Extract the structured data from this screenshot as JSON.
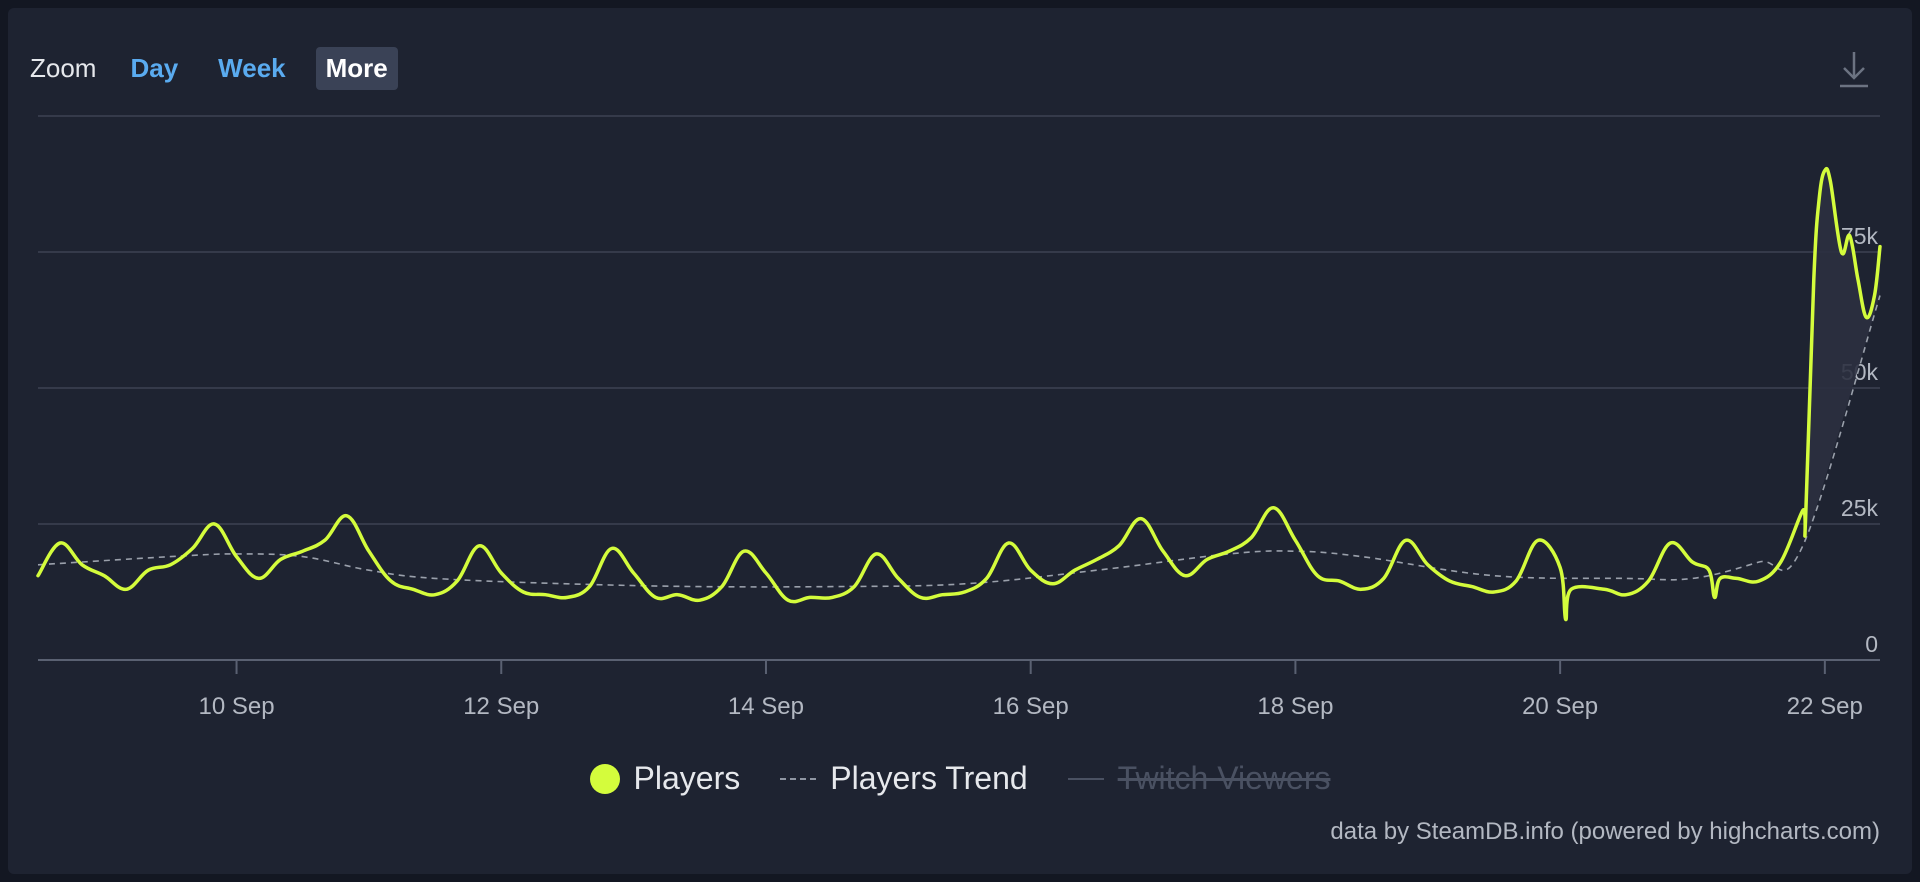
{
  "zoom": {
    "label": "Zoom",
    "buttons": [
      "Day",
      "Week",
      "More"
    ],
    "active": "More"
  },
  "download_icon": "download-icon",
  "credit": "data by SteamDB.info (powered by highcharts.com)",
  "legend": {
    "players": "Players",
    "trend": "Players Trend",
    "twitch": "Twitch Viewers"
  },
  "colors": {
    "players": "#d4fc3c",
    "trend": "#9aa0ab",
    "grid": "#3d4352",
    "text": "#b3b8c2"
  },
  "chart_data": {
    "type": "line",
    "x_start": "2023-09-08T12:00",
    "x_end": "2023-09-22T10:00",
    "x_ticks": [
      {
        "date": "2023-09-10",
        "label": "10 Sep"
      },
      {
        "date": "2023-09-12",
        "label": "12 Sep"
      },
      {
        "date": "2023-09-14",
        "label": "14 Sep"
      },
      {
        "date": "2023-09-16",
        "label": "16 Sep"
      },
      {
        "date": "2023-09-18",
        "label": "18 Sep"
      },
      {
        "date": "2023-09-20",
        "label": "20 Sep"
      },
      {
        "date": "2023-09-22",
        "label": "22 Sep"
      }
    ],
    "y_ticks": [
      0,
      25000,
      50000,
      75000
    ],
    "y_tick_labels": [
      "0",
      "25k",
      "50k",
      "75k"
    ],
    "ylim": [
      0,
      100000
    ],
    "grid": true,
    "legend_position": "bottom-center",
    "series": [
      {
        "name": "Players",
        "points": [
          [
            "2023-09-08T12:00",
            15500
          ],
          [
            "2023-09-08T16:00",
            21500
          ],
          [
            "2023-09-08T20:00",
            17500
          ],
          [
            "2023-09-09T00:00",
            15500
          ],
          [
            "2023-09-09T04:00",
            13000
          ],
          [
            "2023-09-09T08:00",
            16500
          ],
          [
            "2023-09-09T12:00",
            17500
          ],
          [
            "2023-09-09T16:00",
            20500
          ],
          [
            "2023-09-09T20:00",
            25000
          ],
          [
            "2023-09-10T00:00",
            19000
          ],
          [
            "2023-09-10T04:00",
            15000
          ],
          [
            "2023-09-10T08:00",
            18500
          ],
          [
            "2023-09-10T12:00",
            20000
          ],
          [
            "2023-09-10T16:00",
            22000
          ],
          [
            "2023-09-10T20:00",
            26500
          ],
          [
            "2023-09-11T00:00",
            20000
          ],
          [
            "2023-09-11T04:00",
            14500
          ],
          [
            "2023-09-11T08:00",
            13000
          ],
          [
            "2023-09-11T12:00",
            12000
          ],
          [
            "2023-09-11T16:00",
            14500
          ],
          [
            "2023-09-11T20:00",
            21000
          ],
          [
            "2023-09-12T00:00",
            16000
          ],
          [
            "2023-09-12T04:00",
            12500
          ],
          [
            "2023-09-12T08:00",
            12000
          ],
          [
            "2023-09-12T12:00",
            11500
          ],
          [
            "2023-09-12T16:00",
            13500
          ],
          [
            "2023-09-12T20:00",
            20500
          ],
          [
            "2023-09-13T00:00",
            16000
          ],
          [
            "2023-09-13T04:00",
            11500
          ],
          [
            "2023-09-13T08:00",
            12000
          ],
          [
            "2023-09-13T12:00",
            11000
          ],
          [
            "2023-09-13T16:00",
            13500
          ],
          [
            "2023-09-13T20:00",
            20000
          ],
          [
            "2023-09-14T00:00",
            16000
          ],
          [
            "2023-09-14T04:00",
            11000
          ],
          [
            "2023-09-14T08:00",
            11500
          ],
          [
            "2023-09-14T12:00",
            11500
          ],
          [
            "2023-09-14T16:00",
            13500
          ],
          [
            "2023-09-14T20:00",
            19500
          ],
          [
            "2023-09-15T00:00",
            15000
          ],
          [
            "2023-09-15T04:00",
            11500
          ],
          [
            "2023-09-15T08:00",
            12000
          ],
          [
            "2023-09-15T12:00",
            12500
          ],
          [
            "2023-09-15T16:00",
            15000
          ],
          [
            "2023-09-15T20:00",
            21500
          ],
          [
            "2023-09-16T00:00",
            16500
          ],
          [
            "2023-09-16T04:00",
            14000
          ],
          [
            "2023-09-16T08:00",
            16500
          ],
          [
            "2023-09-16T12:00",
            18500
          ],
          [
            "2023-09-16T16:00",
            21000
          ],
          [
            "2023-09-16T20:00",
            26000
          ],
          [
            "2023-09-17T00:00",
            20000
          ],
          [
            "2023-09-17T04:00",
            15500
          ],
          [
            "2023-09-17T08:00",
            18500
          ],
          [
            "2023-09-17T12:00",
            20000
          ],
          [
            "2023-09-17T16:00",
            22500
          ],
          [
            "2023-09-17T20:00",
            28000
          ],
          [
            "2023-09-18T00:00",
            22000
          ],
          [
            "2023-09-18T04:00",
            15500
          ],
          [
            "2023-09-18T08:00",
            14500
          ],
          [
            "2023-09-18T12:00",
            13000
          ],
          [
            "2023-09-18T16:00",
            15000
          ],
          [
            "2023-09-18T20:00",
            22000
          ],
          [
            "2023-09-19T00:00",
            17500
          ],
          [
            "2023-09-19T04:00",
            14500
          ],
          [
            "2023-09-19T08:00",
            13500
          ],
          [
            "2023-09-19T12:00",
            12500
          ],
          [
            "2023-09-19T16:00",
            14500
          ],
          [
            "2023-09-19T20:00",
            22000
          ],
          [
            "2023-09-20T00:00",
            17000
          ],
          [
            "2023-09-20T01:00",
            7500
          ],
          [
            "2023-09-20T02:00",
            13000
          ],
          [
            "2023-09-20T08:00",
            13000
          ],
          [
            "2023-09-20T12:00",
            12000
          ],
          [
            "2023-09-20T16:00",
            14500
          ],
          [
            "2023-09-20T20:00",
            21500
          ],
          [
            "2023-09-21T00:00",
            18000
          ],
          [
            "2023-09-21T03:00",
            16500
          ],
          [
            "2023-09-21T04:00",
            11500
          ],
          [
            "2023-09-21T05:00",
            15000
          ],
          [
            "2023-09-21T08:00",
            15000
          ],
          [
            "2023-09-21T12:00",
            14500
          ],
          [
            "2023-09-21T16:00",
            18000
          ],
          [
            "2023-09-21T20:00",
            27500
          ],
          [
            "2023-09-21T20:30",
            25500
          ],
          [
            "2023-09-21T22:00",
            70000
          ],
          [
            "2023-09-21T23:00",
            85000
          ],
          [
            "2023-09-22T00:00",
            90000
          ],
          [
            "2023-09-22T01:00",
            88000
          ],
          [
            "2023-09-22T03:00",
            75000
          ],
          [
            "2023-09-22T04:30",
            78000
          ],
          [
            "2023-09-22T06:00",
            70000
          ],
          [
            "2023-09-22T07:30",
            63000
          ],
          [
            "2023-09-22T09:00",
            67000
          ],
          [
            "2023-09-22T10:00",
            76000
          ]
        ]
      },
      {
        "name": "Players Trend",
        "points": [
          [
            "2023-09-08T12:00",
            17500
          ],
          [
            "2023-09-09T12:00",
            19000
          ],
          [
            "2023-09-10T00:00",
            19500
          ],
          [
            "2023-09-10T12:00",
            19000
          ],
          [
            "2023-09-11T00:00",
            16500
          ],
          [
            "2023-09-11T12:00",
            15000
          ],
          [
            "2023-09-12T12:00",
            14000
          ],
          [
            "2023-09-13T12:00",
            13500
          ],
          [
            "2023-09-14T12:00",
            13500
          ],
          [
            "2023-09-15T12:00",
            14000
          ],
          [
            "2023-09-16T12:00",
            16500
          ],
          [
            "2023-09-17T12:00",
            19500
          ],
          [
            "2023-09-18T00:00",
            20000
          ],
          [
            "2023-09-18T12:00",
            19000
          ],
          [
            "2023-09-19T12:00",
            15500
          ],
          [
            "2023-09-20T12:00",
            15000
          ],
          [
            "2023-09-21T00:00",
            15000
          ],
          [
            "2023-09-21T12:00",
            18000
          ],
          [
            "2023-09-21T20:00",
            21000
          ],
          [
            "2023-09-22T10:00",
            67000
          ]
        ]
      }
    ]
  }
}
